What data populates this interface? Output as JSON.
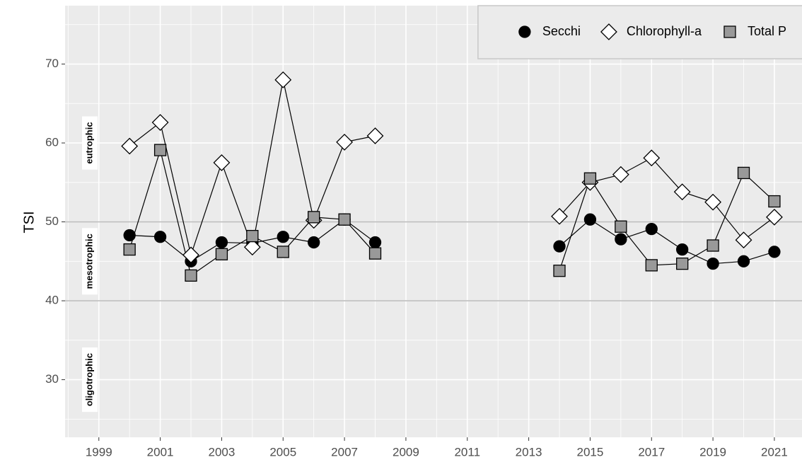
{
  "chart_data": {
    "type": "line",
    "y_label": "TSI",
    "x": [
      2000,
      2001,
      2002,
      2003,
      2004,
      2005,
      2006,
      2007,
      2008,
      2009,
      2010,
      2011,
      2012,
      2013,
      2014,
      2015,
      2016,
      2017,
      2018,
      2019,
      2020,
      2021
    ],
    "series": [
      {
        "name": "Secchi",
        "color": "#000000",
        "marker": "circle",
        "values": [
          48.3,
          48.1,
          45.0,
          47.4,
          47.3,
          48.1,
          47.4,
          50.3,
          47.4,
          null,
          null,
          null,
          null,
          null,
          46.9,
          50.3,
          47.8,
          49.1,
          46.5,
          44.7,
          45.0,
          46.2
        ]
      },
      {
        "name": "Chlorophyll-a",
        "color": "#ffffff",
        "marker": "diamond",
        "values": [
          59.6,
          62.6,
          45.8,
          57.5,
          46.8,
          68.0,
          50.2,
          60.1,
          60.9,
          null,
          null,
          null,
          null,
          null,
          50.7,
          55.0,
          56.0,
          58.1,
          53.8,
          52.5,
          47.7,
          50.6
        ]
      },
      {
        "name": "Total P",
        "color": "#999999",
        "marker": "square",
        "values": [
          46.5,
          59.1,
          43.2,
          45.9,
          48.2,
          46.2,
          50.6,
          50.3,
          46.0,
          null,
          null,
          null,
          null,
          null,
          43.8,
          55.5,
          49.4,
          44.5,
          44.7,
          47.0,
          56.2,
          52.6
        ]
      }
    ],
    "xlim": [
      1997.9,
      2021.9
    ],
    "ylim": [
      22.7,
      77.4
    ],
    "xticks": [
      1999,
      2001,
      2003,
      2005,
      2007,
      2009,
      2011,
      2013,
      2015,
      2017,
      2019,
      2021
    ],
    "yticks": [
      30,
      40,
      50,
      60,
      70
    ],
    "minor_xticks": [
      1998,
      2000,
      2002,
      2004,
      2006,
      2008,
      2010,
      2012,
      2014,
      2016,
      2018,
      2020
    ],
    "minor_yticks": [
      25,
      35,
      45,
      55,
      65,
      75
    ],
    "hlines": [
      40,
      50
    ],
    "annotations": [
      {
        "text": "eutrophic",
        "y": 60
      },
      {
        "text": "mesotrophic",
        "y": 45
      },
      {
        "text": "oligotrophic",
        "y": 30
      }
    ],
    "grid": true,
    "legend_position": "top-right"
  }
}
